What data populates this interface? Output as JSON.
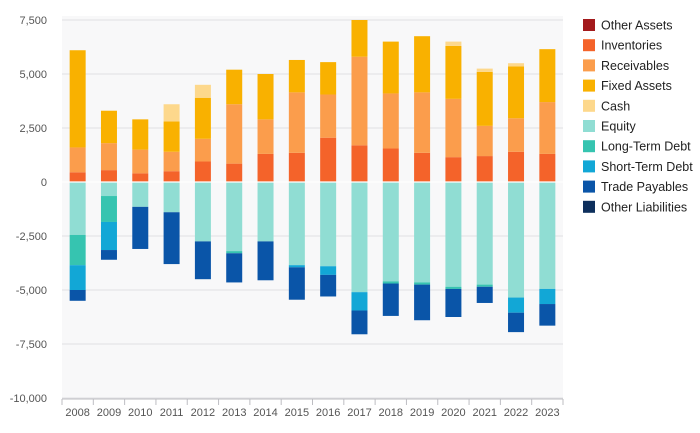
{
  "chart_data": {
    "type": "bar",
    "stacked": true,
    "categories": [
      "2008",
      "2009",
      "2010",
      "2011",
      "2012",
      "2013",
      "2014",
      "2015",
      "2016",
      "2017",
      "2018",
      "2019",
      "2020",
      "2021",
      "2022",
      "2023"
    ],
    "ylim": [
      -10000,
      7500
    ],
    "yticks": [
      -10000,
      -7500,
      -5000,
      -2500,
      0,
      2500,
      5000,
      7500
    ],
    "ytick_labels": [
      "-10,000",
      "-7,500",
      "-5,000",
      "-2,500",
      "0",
      "2,500",
      "5,000",
      "7,500"
    ],
    "grid": true,
    "legend_position": "right",
    "series": [
      {
        "name": "Other Assets",
        "color": "#a31a1c",
        "values": [
          0,
          0,
          0,
          0,
          0,
          0,
          0,
          0,
          0,
          0,
          0,
          0,
          0,
          0,
          0,
          0
        ]
      },
      {
        "name": "Inventories",
        "color": "#f4632a",
        "values": [
          450,
          550,
          400,
          500,
          950,
          850,
          1300,
          1350,
          2050,
          1700,
          1550,
          1350,
          1150,
          1200,
          1400,
          1300
        ]
      },
      {
        "name": "Receivables",
        "color": "#fb9d4c",
        "values": [
          1150,
          1250,
          1100,
          900,
          1050,
          2750,
          1600,
          2800,
          2000,
          4100,
          2550,
          2800,
          2700,
          1400,
          1550,
          2400
        ]
      },
      {
        "name": "Fixed Assets",
        "color": "#f9b100",
        "values": [
          4500,
          1500,
          1400,
          1400,
          1900,
          1600,
          2100,
          1500,
          1500,
          1700,
          2400,
          2600,
          2450,
          2500,
          2400,
          2450
        ]
      },
      {
        "name": "Cash",
        "color": "#fdd88c",
        "values": [
          0,
          0,
          0,
          800,
          600,
          0,
          0,
          0,
          0,
          0,
          0,
          0,
          200,
          150,
          150,
          0
        ]
      },
      {
        "name": "Equity",
        "color": "#90ddd3",
        "values": [
          -2450,
          -650,
          -1150,
          -1400,
          -2750,
          -3200,
          -2750,
          -3850,
          -3900,
          -5100,
          -4600,
          -4650,
          -4850,
          -4750,
          -5350,
          -4950
        ]
      },
      {
        "name": "Long-Term Debt",
        "color": "#36c4b0",
        "values": [
          -1400,
          -1200,
          0,
          0,
          0,
          -100,
          0,
          0,
          0,
          0,
          -100,
          -100,
          -100,
          -100,
          0,
          0
        ]
      },
      {
        "name": "Short-Term Debt",
        "color": "#12a7d6",
        "values": [
          -1150,
          -1300,
          0,
          0,
          0,
          0,
          0,
          -100,
          -400,
          -850,
          0,
          0,
          0,
          0,
          -700,
          -700
        ]
      },
      {
        "name": "Trade Payables",
        "color": "#0a55a8",
        "values": [
          -500,
          -450,
          -1950,
          -2400,
          -1750,
          -1350,
          -1800,
          -1500,
          -1000,
          -1100,
          -1500,
          -1650,
          -1300,
          -750,
          -900,
          -1000
        ]
      },
      {
        "name": "Other Liabilities",
        "color": "#0d2f5c",
        "values": [
          0,
          0,
          0,
          0,
          0,
          0,
          0,
          0,
          0,
          0,
          0,
          0,
          0,
          0,
          0,
          0
        ]
      }
    ]
  }
}
